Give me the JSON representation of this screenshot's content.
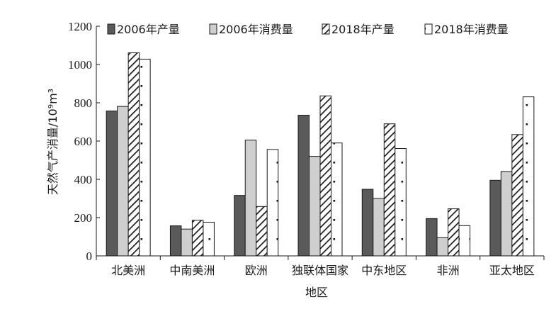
{
  "chart_data": {
    "type": "bar",
    "categories": [
      "北美洲",
      "中南美洲",
      "欧洲",
      "独联体国家",
      "中东地区",
      "非洲",
      "亚太地区"
    ],
    "series": [
      {
        "name": "2006年产量",
        "values": [
          757,
          157,
          316,
          735,
          348,
          195,
          395
        ],
        "fill": "#5a5a5a",
        "pattern": "solid"
      },
      {
        "name": "2006年消费量",
        "values": [
          781,
          140,
          605,
          520,
          300,
          95,
          441
        ],
        "fill": "#cfcfcf",
        "pattern": "solid"
      },
      {
        "name": "2018年产量",
        "values": [
          1061,
          186,
          258,
          836,
          690,
          246,
          634
        ],
        "fill": "#ffffff",
        "pattern": "diagonal-hatch"
      },
      {
        "name": "2018年消费量",
        "values": [
          1028,
          176,
          556,
          590,
          561,
          158,
          831
        ],
        "fill": "#ffffff",
        "pattern": "dotted"
      }
    ],
    "xlabel": "地区",
    "ylabel": "天然气产消量/10⁹m³",
    "ylim": [
      0,
      1200
    ],
    "yticks": [
      "0",
      "200",
      "400",
      "600",
      "800",
      "1000",
      "1200"
    ],
    "grid": false,
    "legend_position": "top"
  }
}
